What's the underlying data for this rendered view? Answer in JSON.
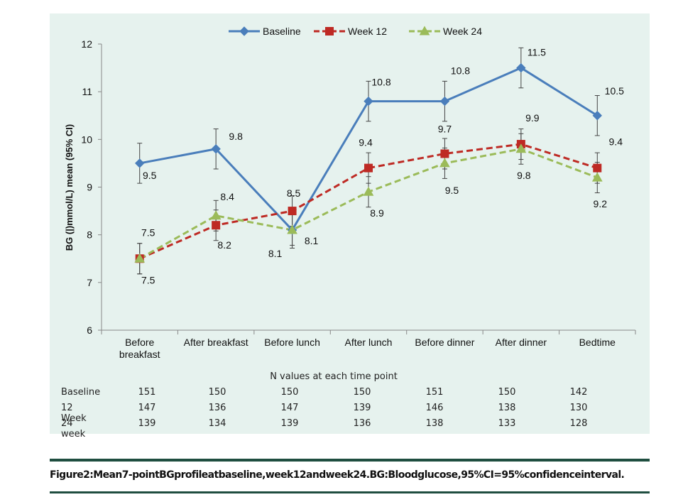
{
  "chart_data": {
    "type": "line",
    "title": "",
    "ylabel": "BG (|)mmol/L) mean (95% CI)",
    "xlabel": "",
    "ylim": [
      6,
      12
    ],
    "yticks": [
      6,
      7,
      8,
      9,
      10,
      11,
      12
    ],
    "categories": [
      "Before breakfast",
      "After breakfast",
      "Before lunch",
      "After lunch",
      "Before dinner",
      "After dinner",
      "Bedtime"
    ],
    "category_lines": [
      [
        "Before",
        "breakfast"
      ],
      [
        "After breakfast"
      ],
      [
        "Before lunch"
      ],
      [
        "After lunch"
      ],
      [
        "Before dinner"
      ],
      [
        "After dinner"
      ],
      [
        "Bedtime"
      ]
    ],
    "legend_position": "top",
    "series": [
      {
        "name": "Baseline",
        "color": "#4a7ebb",
        "dash": "solid",
        "marker": "diamond",
        "values": [
          9.5,
          9.8,
          8.1,
          10.8,
          10.8,
          11.5,
          10.5
        ],
        "err_low": [
          9.08,
          9.38,
          7.72,
          10.38,
          10.38,
          11.08,
          10.08
        ],
        "err_high": [
          9.92,
          10.22,
          8.48,
          11.22,
          11.22,
          11.92,
          10.92
        ],
        "labels": [
          "9.5",
          "9.8",
          "8.1",
          "10.8",
          "10.8",
          "11.5",
          "10.5"
        ]
      },
      {
        "name": "Week 12",
        "color": "#be2a24",
        "dash": "dashed",
        "marker": "square",
        "values": [
          7.5,
          8.2,
          8.5,
          9.4,
          9.7,
          9.9,
          9.4
        ],
        "err_low": [
          7.18,
          7.88,
          8.18,
          9.08,
          9.38,
          9.58,
          9.08
        ],
        "err_high": [
          7.82,
          8.52,
          8.82,
          9.72,
          10.02,
          10.22,
          9.72
        ],
        "labels": [
          "7.5",
          "8.2",
          "8.5",
          "9.4",
          "9.7",
          "9.9",
          "9.4"
        ]
      },
      {
        "name": "Week 24",
        "color": "#9bbb59",
        "dash": "dashed",
        "marker": "triangle",
        "values": [
          7.5,
          8.4,
          8.1,
          8.9,
          9.5,
          9.8,
          9.2
        ],
        "err_low": [
          7.18,
          8.08,
          7.78,
          8.58,
          9.18,
          9.48,
          8.88
        ],
        "err_high": [
          7.82,
          8.72,
          8.42,
          9.22,
          9.82,
          10.12,
          9.52
        ],
        "labels": [
          "7.5",
          "8.4",
          "8.1",
          "8.9",
          "9.5",
          "9.8",
          "9.2"
        ]
      }
    ]
  },
  "n_table": {
    "title": "N values at each time point",
    "rows": [
      {
        "label": "Baseline",
        "values": [
          "151",
          "150",
          "150",
          "150",
          "151",
          "150",
          "142"
        ]
      },
      {
        "label": "12 Week",
        "values": [
          "147",
          "136",
          "147",
          "139",
          "146",
          "138",
          "130"
        ]
      },
      {
        "label": "24 week",
        "values": [
          "139",
          "134",
          "139",
          "136",
          "138",
          "133",
          "128"
        ]
      }
    ]
  },
  "caption": "Figure2:Mean7-pointBGprofileatbaseline,week12andweek24.BG:Bloodglucose,95%CI=95%confidenceinterval."
}
